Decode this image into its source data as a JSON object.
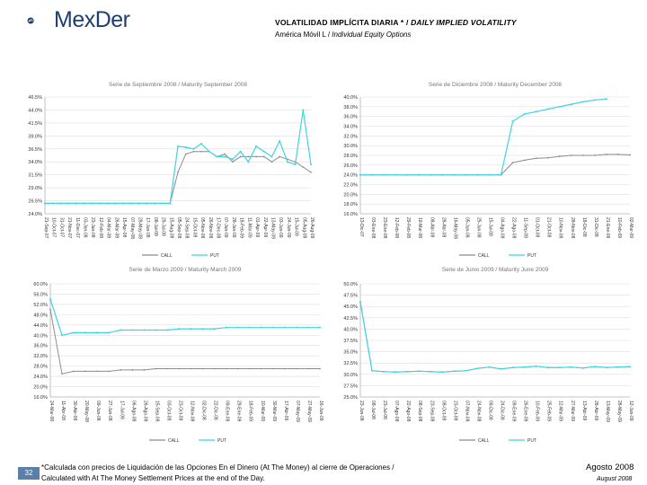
{
  "header": {
    "logo_text": "MexDer",
    "title_es": "VOLATILIDAD IMPLÍCITA DIARIA * /",
    "title_en": "DAILY IMPLIED VOLATILITY",
    "subtitle_es": "América Móvil L /",
    "subtitle_en": "Individual Equity Options"
  },
  "footer": {
    "page_number": "32",
    "note_es": "*Calculada con precios de Liquidación de las Opciones En el Dinero (At The Money) al cierre de Operaciones /",
    "note_en": "Calculated with At The Money Settlement Prices at the end of the Day.",
    "date_es": "Agosto 2008",
    "date_en": "August 2008"
  },
  "colors": {
    "call": "#8c8c8c",
    "put": "#3fd4e0",
    "grid": "#dddddd",
    "title": "#777777"
  },
  "chart_data": [
    {
      "type": "line",
      "title": "Serie de Septiembre 2008 / Maturity September 2008",
      "yticks": [
        "24.0%",
        "26.5%",
        "29.0%",
        "31.5%",
        "34.0%",
        "36.5%",
        "39.0%",
        "41.5%",
        "44.0%",
        "46.5%"
      ],
      "ylim": [
        24.0,
        46.5
      ],
      "categories": [
        "21-Sep-07",
        "10-Oct-07",
        "31-Oct-07",
        "21-Nov-07",
        "11-Dec-07",
        "03-Jan-08",
        "23-Jan-08",
        "12-Feb-08",
        "04-Mar-08",
        "26-Mar-08",
        "15-Apr-08",
        "07-May-08",
        "28-May-08",
        "17-Jun-08",
        "08-Jul-08",
        "29-Jul-08",
        "15-Aug-08",
        "05-Sep-08",
        "24-Sep-08",
        "15-Oct-08",
        "05-Nov-08",
        "26-Nov-08",
        "17-Dec-08",
        "07-Jan-09",
        "28-Jan-09",
        "18-Feb-09",
        "11-Mar-09",
        "01-Apr-09",
        "22-Apr-09",
        "13-May-09",
        "03-Jun-09",
        "24-Jun-09",
        "15-Jul-09",
        "05-Aug-09",
        "26-Aug-09"
      ],
      "legend": [
        "CALL",
        "PUT"
      ],
      "series": [
        {
          "name": "CALL",
          "values": [
            26,
            26,
            26,
            26,
            26,
            26,
            26,
            26,
            26,
            26,
            26,
            26,
            26,
            26,
            26,
            26,
            26,
            32,
            35.5,
            36,
            36,
            36,
            35,
            35.5,
            34,
            35,
            35,
            35,
            35,
            34,
            35,
            34.5,
            34,
            33,
            32
          ]
        },
        {
          "name": "PUT",
          "values": [
            26,
            26,
            26,
            26,
            26,
            26,
            26,
            26,
            26,
            26,
            26,
            26,
            26,
            26,
            26,
            26,
            26,
            37,
            36.8,
            36.5,
            37.5,
            36,
            35,
            35,
            34.5,
            36,
            34,
            37,
            36,
            35,
            38,
            34,
            33.5,
            44,
            33.5
          ]
        }
      ]
    },
    {
      "type": "line",
      "title": "Serie de Diciembre 2008 / Maturity December 2008",
      "yticks": [
        "16.0%",
        "18.0%",
        "20.0%",
        "22.0%",
        "24.0%",
        "26.0%",
        "28.0%",
        "30.0%",
        "32.0%",
        "34.0%",
        "36.0%",
        "38.0%",
        "40.0%"
      ],
      "ylim": [
        16.0,
        40.0
      ],
      "categories": [
        "13-Dic-07",
        "03-Ene-08",
        "23-Ene-08",
        "12-Feb-08",
        "29-Feb-08",
        "19-Mar-08",
        "08-Abr-08",
        "28-Abr-08",
        "16-May-08",
        "05-Jun-08",
        "25-Jun-08",
        "15-Jul-08",
        "04-Ago-08",
        "22-Ago-08",
        "11-Sep-08",
        "01-Oct-08",
        "21-Oct-08",
        "10-Nov-08",
        "28-Nov-08",
        "18-Dic-08",
        "31-Dic-08",
        "21-Ene-09",
        "10-Feb-09",
        "02-Mar-09"
      ],
      "legend": [
        "CALL",
        "PUT"
      ],
      "series": [
        {
          "name": "CALL",
          "values": [
            24,
            24,
            24,
            24,
            24,
            24,
            24,
            24,
            24,
            24,
            24,
            24,
            24,
            26.5,
            27,
            27.4,
            27.5,
            27.8,
            28,
            28,
            28,
            28.2,
            28.2,
            28.1
          ]
        },
        {
          "name": "PUT",
          "values": [
            24,
            24,
            24,
            24,
            24,
            24,
            24,
            24,
            24,
            24,
            24,
            24,
            24,
            35,
            36.5,
            37,
            37.5,
            38,
            38.5,
            39,
            39.4,
            39.6,
            null,
            null
          ]
        }
      ]
    },
    {
      "type": "line",
      "title": "Serie de Marzo 2009 / Maturity March 2009",
      "yticks": [
        "16.0%",
        "20.0%",
        "24.0%",
        "28.0%",
        "32.0%",
        "36.0%",
        "40.0%",
        "44.0%",
        "48.0%",
        "52.0%",
        "56.0%",
        "60.0%"
      ],
      "ylim": [
        16.0,
        60.0
      ],
      "categories": [
        "24-Mar-08",
        "11-Abr-08",
        "30-Abr-08",
        "20-May-08",
        "09-Jun-08",
        "27-Jun-08",
        "17-Jul-08",
        "06-Ago-08",
        "26-Ago-08",
        "15-Sep-08",
        "03-Oct-08",
        "23-Oct-08",
        "12-Nov-08",
        "02-Dic-08",
        "22-Dic-08",
        "09-Ene-09",
        "29-Ene-09",
        "18-Feb-09",
        "10-Mar-09",
        "30-Mar-09",
        "17-Abr-09",
        "07-May-09",
        "27-May-09",
        "16-Jun-09"
      ],
      "legend": [
        "CALL",
        "PUT"
      ],
      "series": [
        {
          "name": "CALL",
          "values": [
            50,
            25,
            26,
            26,
            26,
            26,
            26.5,
            26.5,
            26.5,
            27,
            27,
            27,
            27,
            27,
            27,
            27,
            27,
            27,
            27,
            27,
            27,
            27,
            27,
            27
          ]
        },
        {
          "name": "PUT",
          "values": [
            54,
            40,
            41,
            41,
            41,
            41,
            42,
            42,
            42,
            42,
            42,
            42.5,
            42.5,
            42.5,
            42.5,
            43,
            43,
            43,
            43,
            43,
            43,
            43,
            43,
            43
          ]
        }
      ]
    },
    {
      "type": "line",
      "title": "Serie de Junio 2009 / Maturity June 2009",
      "yticks": [
        "25.0%",
        "27.5%",
        "30.0%",
        "32.5%",
        "35.0%",
        "37.5%",
        "40.0%",
        "42.5%",
        "45.0%",
        "47.5%",
        "50.0%"
      ],
      "ylim": [
        25.0,
        50.0
      ],
      "categories": [
        "23-Jun-08",
        "08-Jul-08",
        "23-Jul-08",
        "07-Ago-08",
        "22-Ago-08",
        "08-Sep-08",
        "23-Sep-08",
        "08-Oct-08",
        "23-Oct-08",
        "07-Nov-08",
        "24-Nov-08",
        "09-Dic-08",
        "24-Dic-08",
        "09-Ene-09",
        "26-Ene-09",
        "10-Feb-09",
        "25-Feb-09",
        "12-Mar-09",
        "27-Mar-09",
        "13-Abr-09",
        "28-Abr-09",
        "13-May-09",
        "28-May-09",
        "12-Jun-09"
      ],
      "legend": [
        "CALL",
        "PUT"
      ],
      "series": [
        {
          "name": "CALL",
          "values": [
            46,
            30.8,
            30.6,
            30.5,
            30.6,
            30.7,
            30.6,
            30.5,
            30.7,
            30.8,
            31.3,
            31.6,
            31.2,
            31.5,
            31.6,
            31.8,
            31.5,
            31.5,
            31.6,
            31.4,
            31.7,
            31.5,
            31.6,
            31.7
          ]
        },
        {
          "name": "PUT",
          "values": [
            46,
            30.8,
            30.6,
            30.5,
            30.6,
            30.7,
            30.6,
            30.5,
            30.7,
            30.8,
            31.3,
            31.6,
            31.2,
            31.5,
            31.6,
            31.8,
            31.5,
            31.5,
            31.6,
            31.4,
            31.7,
            31.5,
            31.6,
            31.7
          ]
        }
      ]
    }
  ]
}
